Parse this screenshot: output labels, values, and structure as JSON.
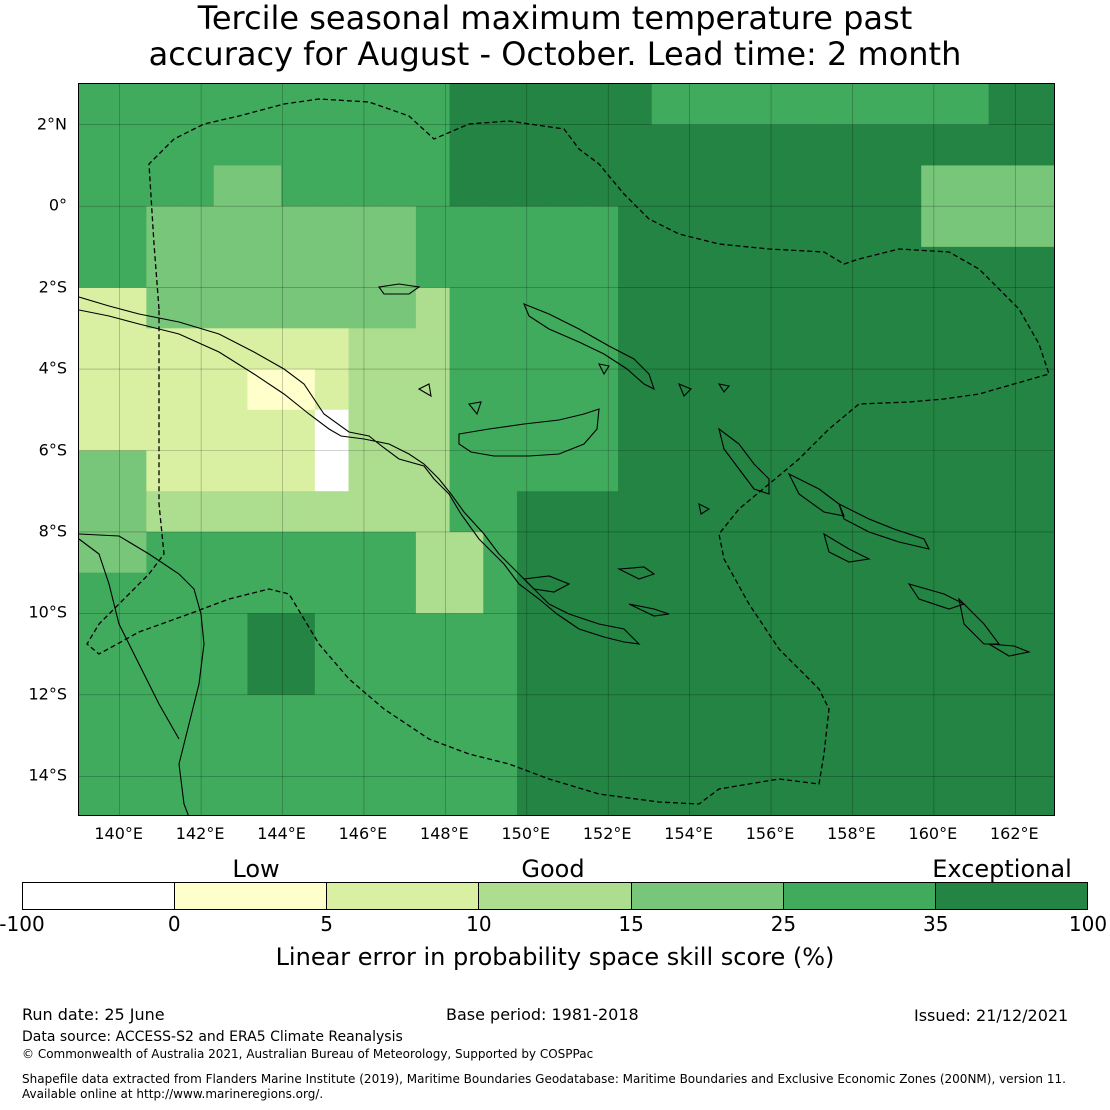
{
  "title": {
    "line1": "Tercile seasonal maximum temperature past",
    "line2": "accuracy for August - October. Lead time: 2 month"
  },
  "map": {
    "lat_labels": [
      "2°N",
      "0°",
      "2°S",
      "4°S",
      "6°S",
      "8°S",
      "10°S",
      "12°S",
      "14°S"
    ],
    "lon_labels": [
      "140°E",
      "142°E",
      "144°E",
      "146°E",
      "148°E",
      "150°E",
      "152°E",
      "154°E",
      "156°E",
      "158°E",
      "160°E",
      "162°E"
    ],
    "lon_range": [
      139,
      163
    ],
    "lat_range": [
      -15,
      3
    ],
    "grid_step_deg": 2,
    "land_outline_color": "#000000",
    "boundary_color": "#000000",
    "skill_grid_note": "Skill score categories per grid cell; dominant category 35-100 (Exceptional) over east and open ocean, lower skill over New Guinea highlands and Gulf of Papua"
  },
  "colorbar": {
    "categories": [
      "Low",
      "Good",
      "Exceptional"
    ],
    "ticks": [
      "-100",
      "0",
      "5",
      "10",
      "15",
      "25",
      "35",
      "100"
    ],
    "colors": [
      "#ffffff",
      "#ffffcc",
      "#d9f0a3",
      "#addd8e",
      "#78c679",
      "#41ab5d",
      "#238443"
    ],
    "label": "Linear error in probability space skill score (%)"
  },
  "footer": {
    "run_date": "Run date: 25 June",
    "base_period": "Base period: 1981-2018",
    "issued": "Issued: 21/12/2021",
    "data_source": "Data source: ACCESS-S2 and ERA5 Climate Reanalysis",
    "copyright": "© Commonwealth of Australia 2021, Australian Bureau of Meteorology, Supported by COSPPac",
    "shapefile_line1": "Shapefile data extracted from Flanders Marine Institute (2019), Maritime Boundaries Geodatabase: Maritime Boundaries and Exclusive Economic Zones (200NM), version 11.",
    "shapefile_line2": "Available online at http://www.marineregions.org/."
  }
}
